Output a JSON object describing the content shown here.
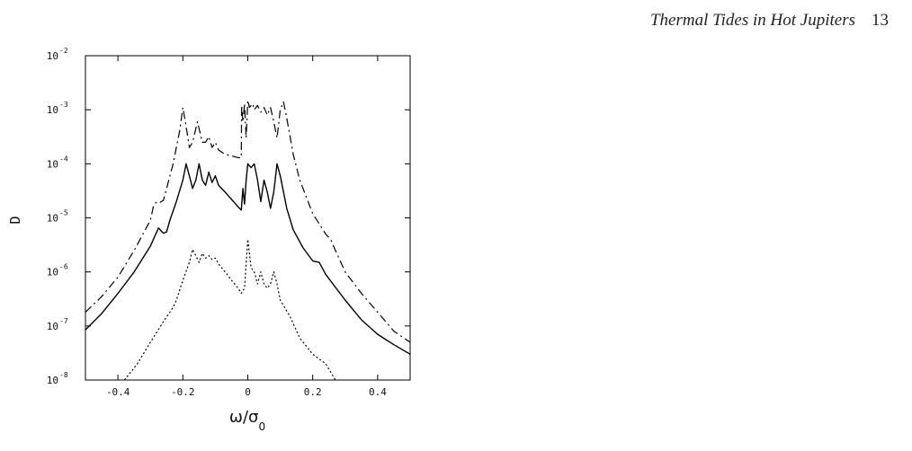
{
  "header": {
    "title": "Thermal Tides in Hot Jupiters",
    "page_number": "13"
  },
  "chart_data": {
    "type": "line",
    "title": "",
    "xlabel": "ω/σ",
    "xlabel_subscript": "0",
    "ylabel": "D",
    "xlim": [
      -0.5,
      0.5
    ],
    "ylim": [
      1e-08,
      0.01
    ],
    "yscale": "log",
    "grid": false,
    "legend": "none",
    "x_ticks": [
      {
        "value": -0.4,
        "label": "-0.4"
      },
      {
        "value": -0.2,
        "label": "-0.2"
      },
      {
        "value": 0.0,
        "label": "0"
      },
      {
        "value": 0.2,
        "label": "0.2"
      },
      {
        "value": 0.4,
        "label": "0.4"
      }
    ],
    "y_ticks": [
      {
        "value": 1e-08,
        "base": "10",
        "exp": "-8"
      },
      {
        "value": 1e-07,
        "base": "10",
        "exp": "-7"
      },
      {
        "value": 1e-06,
        "base": "10",
        "exp": "-6"
      },
      {
        "value": 1e-05,
        "base": "10",
        "exp": "-5"
      },
      {
        "value": 0.0001,
        "base": "10",
        "exp": "-4"
      },
      {
        "value": 0.001,
        "base": "10",
        "exp": "-3"
      },
      {
        "value": 0.01,
        "base": "10",
        "exp": "-2"
      }
    ],
    "series": [
      {
        "style": "dash-dot",
        "color": "#000000",
        "points": [
          [
            -0.5,
            1.8e-07
          ],
          [
            -0.45,
            3.5e-07
          ],
          [
            -0.4,
            8e-07
          ],
          [
            -0.35,
            2.5e-06
          ],
          [
            -0.3,
            9e-06
          ],
          [
            -0.29,
            1.7e-05
          ],
          [
            -0.28,
            2e-05
          ],
          [
            -0.27,
            1.95e-05
          ],
          [
            -0.26,
            2.1e-05
          ],
          [
            -0.25,
            3.5e-05
          ],
          [
            -0.23,
            0.0001
          ],
          [
            -0.21,
            0.0004
          ],
          [
            -0.2,
            0.0011
          ],
          [
            -0.19,
            0.0005
          ],
          [
            -0.18,
            0.0002
          ],
          [
            -0.17,
            0.00025
          ],
          [
            -0.155,
            0.0006
          ],
          [
            -0.14,
            0.00025
          ],
          [
            -0.13,
            0.00025
          ],
          [
            -0.12,
            0.00032
          ],
          [
            -0.11,
            0.0002
          ],
          [
            -0.1,
            0.00025
          ],
          [
            -0.09,
            0.00018
          ],
          [
            -0.07,
            0.00015
          ],
          [
            -0.05,
            0.00014
          ],
          [
            -0.03,
            0.00013
          ],
          [
            -0.02,
            0.00013
          ],
          [
            -0.019,
            0.0012
          ],
          [
            -0.015,
            0.0006
          ],
          [
            -0.01,
            0.0013
          ],
          [
            -0.005,
            0.0003
          ],
          [
            0.0,
            0.0015
          ],
          [
            0.005,
            0.0011
          ],
          [
            0.015,
            0.0013
          ],
          [
            0.02,
            0.001
          ],
          [
            0.03,
            0.0012
          ],
          [
            0.04,
            0.0009
          ],
          [
            0.05,
            0.0011
          ],
          [
            0.06,
            0.0008
          ],
          [
            0.07,
            0.0011
          ],
          [
            0.08,
            0.0006
          ],
          [
            0.09,
            0.0003
          ],
          [
            0.1,
            0.001
          ],
          [
            0.11,
            0.0014
          ],
          [
            0.12,
            0.0007
          ],
          [
            0.14,
            0.00015
          ],
          [
            0.16,
            5e-05
          ],
          [
            0.2,
            1.2e-05
          ],
          [
            0.24,
            5e-06
          ],
          [
            0.255,
            4e-06
          ],
          [
            0.27,
            2.5e-06
          ],
          [
            0.3,
            1e-06
          ],
          [
            0.35,
            4e-07
          ],
          [
            0.4,
            1.8e-07
          ],
          [
            0.45,
            8e-08
          ],
          [
            0.5,
            5e-08
          ]
        ]
      },
      {
        "style": "solid",
        "color": "#000000",
        "points": [
          [
            -0.5,
            8.5e-08
          ],
          [
            -0.45,
            1.7e-07
          ],
          [
            -0.4,
            4e-07
          ],
          [
            -0.35,
            1e-06
          ],
          [
            -0.3,
            3e-06
          ],
          [
            -0.275,
            6.5e-06
          ],
          [
            -0.26,
            5.2e-06
          ],
          [
            -0.25,
            5.5e-06
          ],
          [
            -0.24,
            9e-06
          ],
          [
            -0.22,
            2e-05
          ],
          [
            -0.2,
            5e-05
          ],
          [
            -0.19,
            0.0001
          ],
          [
            -0.18,
            6e-05
          ],
          [
            -0.17,
            3.5e-05
          ],
          [
            -0.16,
            5e-05
          ],
          [
            -0.15,
            0.0001
          ],
          [
            -0.14,
            5e-05
          ],
          [
            -0.13,
            4e-05
          ],
          [
            -0.12,
            7e-05
          ],
          [
            -0.11,
            4.5e-05
          ],
          [
            -0.1,
            6e-05
          ],
          [
            -0.09,
            4e-05
          ],
          [
            -0.07,
            3e-05
          ],
          [
            -0.05,
            2.2e-05
          ],
          [
            -0.03,
            1.6e-05
          ],
          [
            -0.02,
            1.4e-05
          ],
          [
            -0.015,
            3.5e-05
          ],
          [
            -0.01,
            1.8e-05
          ],
          [
            -0.005,
            5e-05
          ],
          [
            0.0,
            0.0001
          ],
          [
            0.01,
            8.5e-05
          ],
          [
            0.02,
            0.0001
          ],
          [
            0.03,
            5e-05
          ],
          [
            0.04,
            2e-05
          ],
          [
            0.05,
            5e-05
          ],
          [
            0.06,
            3e-05
          ],
          [
            0.07,
            1.5e-05
          ],
          [
            0.08,
            3e-05
          ],
          [
            0.09,
            0.0001
          ],
          [
            0.1,
            6e-05
          ],
          [
            0.12,
            1.5e-05
          ],
          [
            0.14,
            6e-06
          ],
          [
            0.17,
            2.8e-06
          ],
          [
            0.2,
            1.6e-06
          ],
          [
            0.22,
            1.5e-06
          ],
          [
            0.24,
            9e-07
          ],
          [
            0.3,
            3e-07
          ],
          [
            0.35,
            1.3e-07
          ],
          [
            0.4,
            7e-08
          ],
          [
            0.45,
            4.5e-08
          ],
          [
            0.5,
            3e-08
          ]
        ]
      },
      {
        "style": "dotted",
        "color": "#000000",
        "points": [
          [
            -0.38,
            1e-08
          ],
          [
            -0.34,
            2e-08
          ],
          [
            -0.3,
            5e-08
          ],
          [
            -0.26,
            1.2e-07
          ],
          [
            -0.23,
            2.2e-07
          ],
          [
            -0.22,
            3e-07
          ],
          [
            -0.2,
            7e-07
          ],
          [
            -0.18,
            1.5e-06
          ],
          [
            -0.17,
            2.6e-06
          ],
          [
            -0.16,
            2e-06
          ],
          [
            -0.15,
            1.5e-06
          ],
          [
            -0.14,
            2.2e-06
          ],
          [
            -0.13,
            1.8e-06
          ],
          [
            -0.12,
            2e-06
          ],
          [
            -0.11,
            1.7e-06
          ],
          [
            -0.1,
            1.8e-06
          ],
          [
            -0.09,
            1.4e-06
          ],
          [
            -0.07,
            1e-06
          ],
          [
            -0.05,
            7e-07
          ],
          [
            -0.03,
            5e-07
          ],
          [
            -0.02,
            4e-07
          ],
          [
            -0.01,
            5e-07
          ],
          [
            0.0,
            4e-06
          ],
          [
            0.01,
            1.2e-06
          ],
          [
            0.02,
            1e-06
          ],
          [
            0.03,
            6e-07
          ],
          [
            0.04,
            1e-06
          ],
          [
            0.05,
            6e-07
          ],
          [
            0.06,
            5e-07
          ],
          [
            0.07,
            6e-07
          ],
          [
            0.08,
            1e-06
          ],
          [
            0.09,
            6e-07
          ],
          [
            0.1,
            3e-07
          ],
          [
            0.13,
            1.5e-07
          ],
          [
            0.16,
            6e-08
          ],
          [
            0.2,
            3e-08
          ],
          [
            0.24,
            2e-08
          ],
          [
            0.27,
            1e-08
          ]
        ]
      }
    ]
  }
}
